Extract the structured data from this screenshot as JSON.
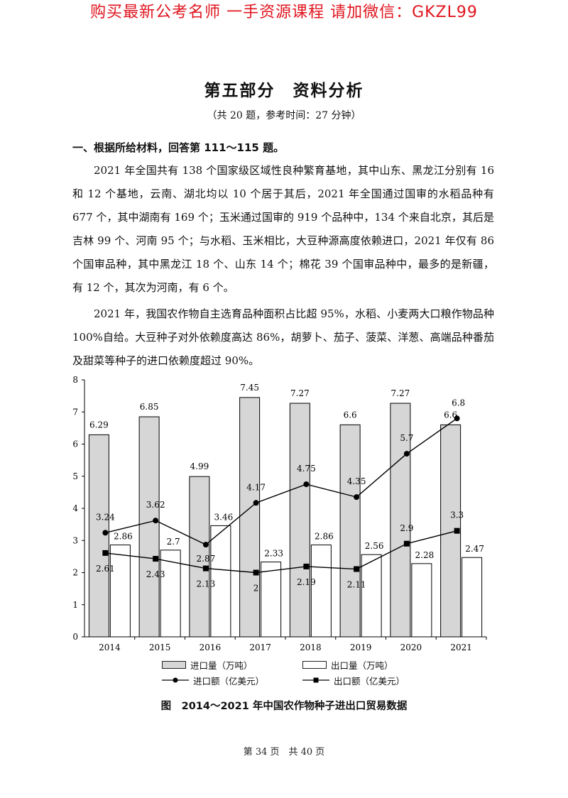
{
  "banner": "购买最新公考名师  一手资源课程  请加微信：GKZL99",
  "title": "第五部分　资料分析",
  "subtitle": "（共 20 题，参考时间：27 分钟）",
  "section_heading": "一、根据所给材料，回答第 111～115 题。",
  "paragraphs": [
    "2021 年全国共有 138 个国家级区域性良种繁育基地，其中山东、黑龙江分别有 16 和 12 个基地，云南、湖北均以 10 个居于其后，2021 年全国通过国审的水稻品种有 677 个，其中湖南有 169 个；玉米通过国审的 919 个品种中，134 个来自北京，其后是吉林 99 个、河南 95 个；与水稻、玉米相比，大豆种源高度依赖进口，2021 年仅有 86 个国审品种，其中黑龙江 18 个、山东 14 个；棉花 39 个国审品种中，最多的是新疆，有 12 个，其次为河南，有 6 个。",
    "2021 年，我国农作物自主选育品种面积占比超 95%，水稻、小麦两大口粮作物品种 100%自给。大豆种子对外依赖度高达 86%，胡萝卜、茄子、菠菜、洋葱、高端品种番茄及甜菜等种子的进口依赖度超过 90%。"
  ],
  "legend": {
    "import_volume": "进口量（万吨）",
    "export_volume": "出口量（万吨）",
    "import_value": "进口额（亿美元）",
    "export_value": "出口额（亿美元）"
  },
  "caption": "图　2014～2021 年中国农作物种子进出口贸易数据",
  "footer": "第 34 页　共 40 页",
  "colors": {
    "banner": "#e0141e",
    "import_bar": "#d6d6d6",
    "export_bar": "#ffffff",
    "line": "#000000"
  },
  "chart_data": {
    "type": "bar",
    "categories": [
      "2014",
      "2015",
      "2016",
      "2017",
      "2018",
      "2019",
      "2020",
      "2021"
    ],
    "ylim": [
      0,
      8
    ],
    "yticks": [
      0,
      1,
      2,
      3,
      4,
      5,
      6,
      7,
      8
    ],
    "series": [
      {
        "name": "进口量（万吨）",
        "kind": "bar",
        "values": [
          6.29,
          6.85,
          4.99,
          7.45,
          7.27,
          6.6,
          7.27,
          6.6
        ],
        "labels": [
          "6.29",
          "6.85",
          "4.99",
          "7.45",
          "7.27",
          "6.6",
          "7.27",
          "6.6"
        ]
      },
      {
        "name": "出口量（万吨）",
        "kind": "bar",
        "values": [
          2.86,
          2.7,
          3.46,
          2.33,
          2.86,
          2.56,
          2.28,
          2.47
        ],
        "labels": [
          "2.86",
          "2.7",
          "3.46",
          "2.33",
          "2.86",
          "2.56",
          "2.28",
          "2.47"
        ]
      },
      {
        "name": "进口额（亿美元）",
        "kind": "line",
        "marker": "circle",
        "values": [
          3.24,
          3.62,
          2.87,
          4.17,
          4.75,
          4.35,
          5.7,
          6.8
        ],
        "labels": [
          "3.24",
          "3.62",
          "2.87",
          "4.17",
          "4.75",
          "4.35",
          "5.7",
          "6.8"
        ]
      },
      {
        "name": "出口额（亿美元）",
        "kind": "line",
        "marker": "square",
        "values": [
          2.61,
          2.43,
          2.13,
          2.0,
          2.19,
          2.11,
          2.9,
          3.3
        ],
        "labels": [
          "2.61",
          "2.43",
          "2.13",
          "2",
          "2.19",
          "2.11",
          "2.9",
          "3.3"
        ]
      }
    ]
  }
}
